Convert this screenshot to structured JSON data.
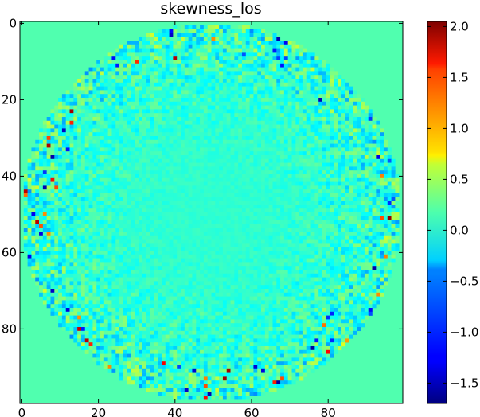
{
  "chart_data": {
    "type": "heatmap",
    "title": "skewness_los",
    "xlabel": "",
    "ylabel": "",
    "grid": false,
    "x_range": [
      0,
      99
    ],
    "y_range": [
      0,
      99
    ],
    "x_ticks": [
      0,
      20,
      40,
      60,
      80
    ],
    "x_tick_labels": [
      "0",
      "20",
      "40",
      "60",
      "80"
    ],
    "y_ticks": [
      0,
      20,
      40,
      60,
      80
    ],
    "y_tick_labels": [
      "0",
      "20",
      "40",
      "60",
      "80"
    ],
    "y_axis_inverted": true,
    "colormap": "jet",
    "value_range": [
      -1.7,
      2.05
    ],
    "background_value": 0.0,
    "disk_center": [
      49.5,
      49.5
    ],
    "disk_radius": 49.5,
    "colorbar": {
      "ticks": [
        2.0,
        1.5,
        1.0,
        0.5,
        0.0,
        -0.5,
        -1.0,
        -1.5
      ],
      "tick_labels": [
        "2.0",
        "1.5",
        "1.0",
        "0.5",
        "0.0",
        "−0.5",
        "−1.0",
        "−1.5"
      ]
    }
  }
}
